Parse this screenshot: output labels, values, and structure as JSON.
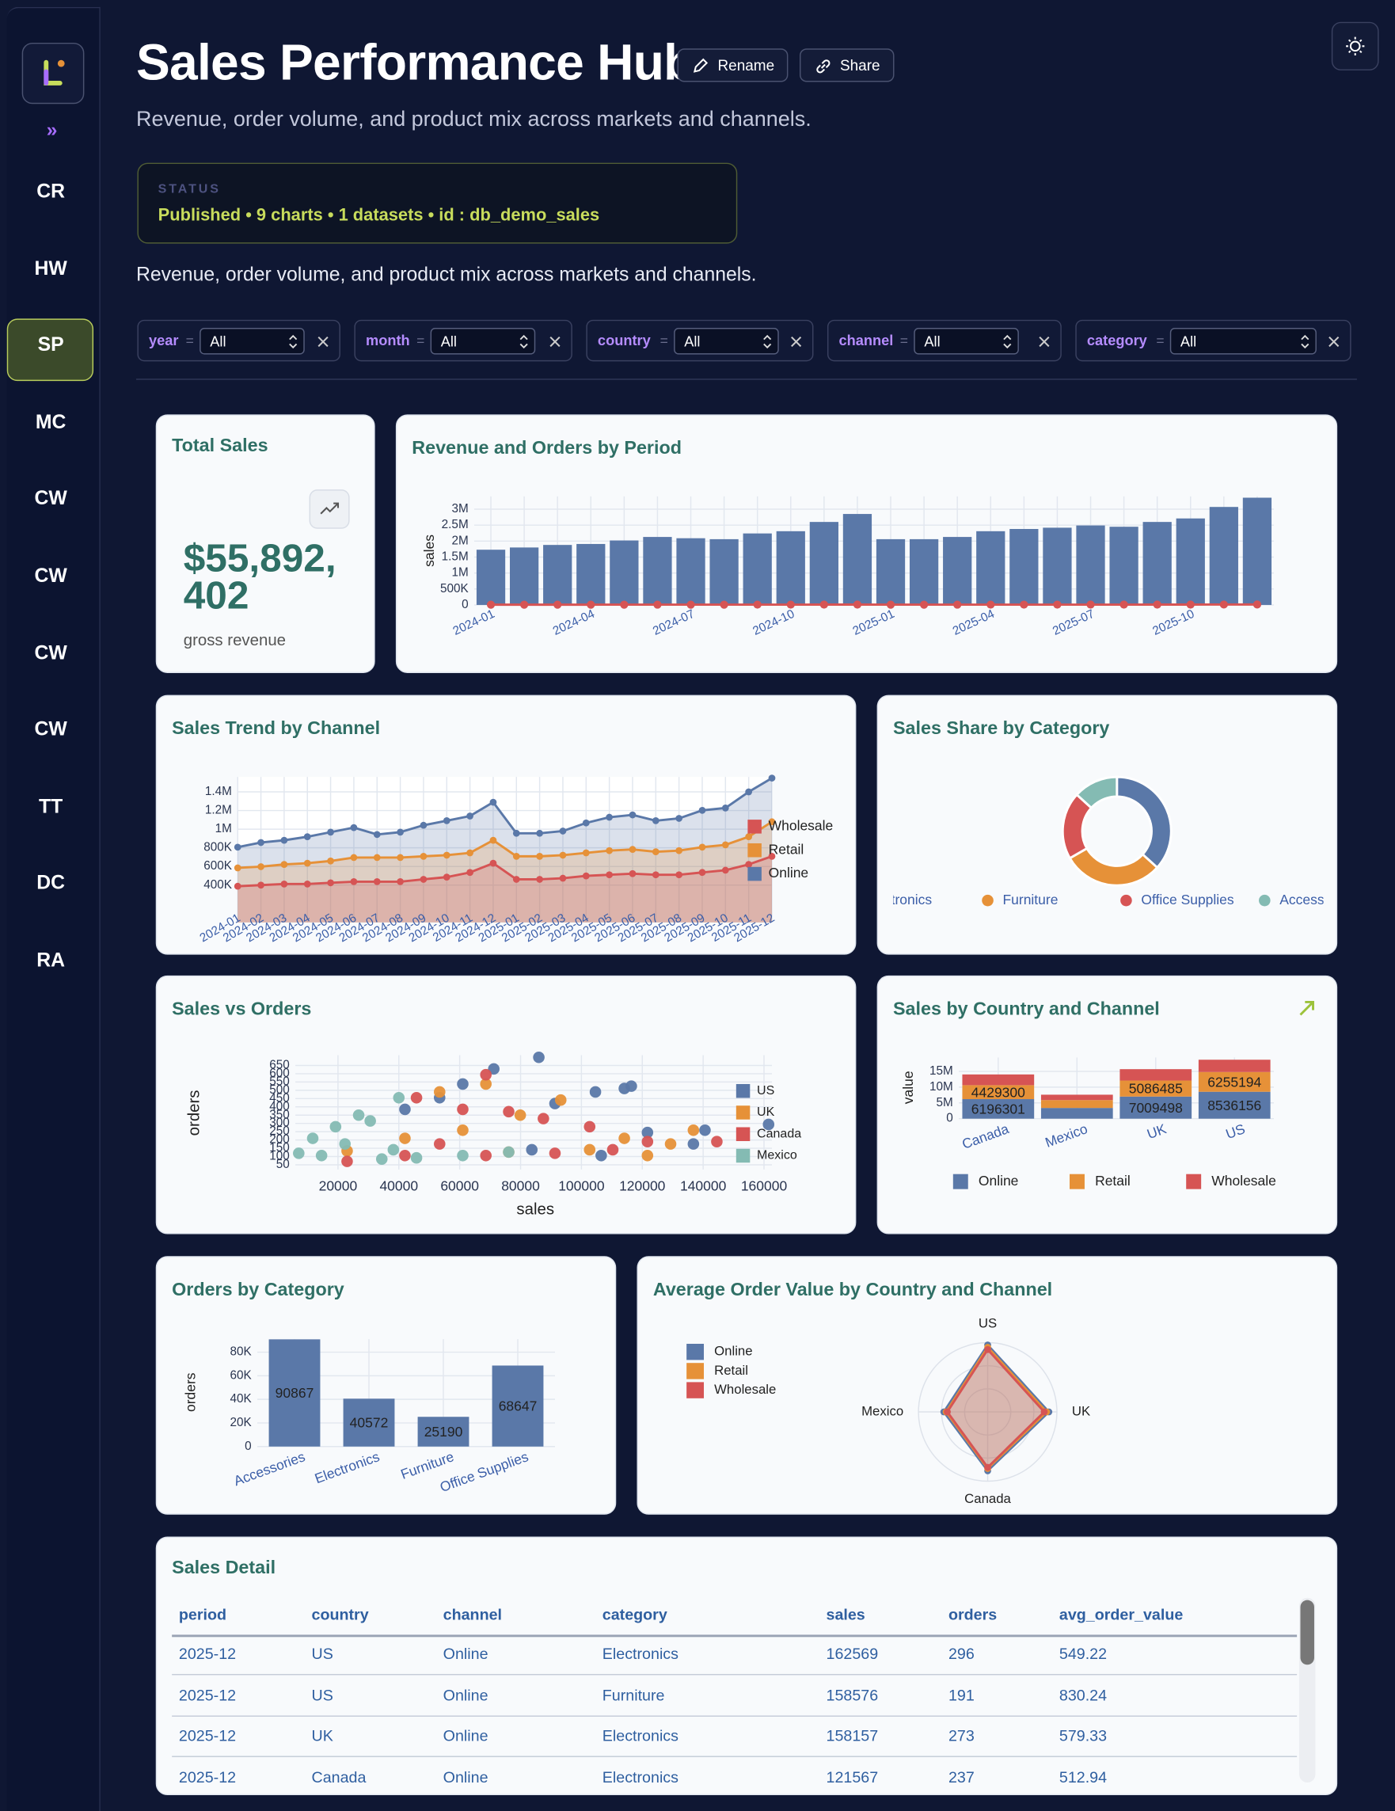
{
  "sidebar": {
    "toggle": "»",
    "items": [
      {
        "label": "CR"
      },
      {
        "label": "HW"
      },
      {
        "label": "SP",
        "active": true
      },
      {
        "label": "MC"
      },
      {
        "label": "CW"
      },
      {
        "label": "CW"
      },
      {
        "label": "CW"
      },
      {
        "label": "CW"
      },
      {
        "label": "TT"
      },
      {
        "label": "DC"
      },
      {
        "label": "RA"
      }
    ]
  },
  "header": {
    "title": "Sales Performance Hub",
    "buttons": [
      "Rename",
      "Share"
    ],
    "subtitle": "Revenue, order volume, and product mix across markets and channels.",
    "status_label": "STATUS",
    "status": "Published • 9 charts • 1 datasets • id : db_demo_sales",
    "description": "Revenue, order volume, and product mix across markets and channels."
  },
  "filters": [
    {
      "field": "year",
      "operator": "=",
      "value": "All"
    },
    {
      "field": "month",
      "operator": "=",
      "value": "All"
    },
    {
      "field": "country",
      "operator": "=",
      "value": "All"
    },
    {
      "field": "channel",
      "operator": "=",
      "value": "All"
    },
    {
      "field": "category",
      "operator": "=",
      "value": "All"
    }
  ],
  "kpi": {
    "title": "Total Sales",
    "value": "$55,892,402",
    "caption": "gross revenue"
  },
  "chart_data": [
    {
      "type": "combo",
      "title": "Revenue and Orders by Period",
      "ylabel": "sales",
      "categories": [
        "2024-01",
        null,
        null,
        "2024-04",
        null,
        null,
        "2024-07",
        null,
        null,
        "2024-10",
        null,
        null,
        "2025-01",
        null,
        null,
        "2025-04",
        null,
        null,
        "2025-07",
        null,
        null,
        "2025-10",
        null,
        null
      ],
      "series": [
        {
          "mark": "bar",
          "color": "#5a78a8",
          "values": [
            1730000,
            1800000,
            1880000,
            1910000,
            2020000,
            2130000,
            2090000,
            2060000,
            2240000,
            2310000,
            2600000,
            2850000,
            2060000,
            2060000,
            2130000,
            2310000,
            2380000,
            2420000,
            2490000,
            2450000,
            2600000,
            2710000,
            3070000,
            3360000
          ]
        },
        {
          "mark": "line",
          "color": "#d65454",
          "values": [
            7600,
            7900,
            8100,
            8200,
            8500,
            8900,
            8800,
            8700,
            9300,
            9500,
            10600,
            11400,
            8600,
            8600,
            8900,
            9500,
            9800,
            9900,
            10100,
            10000,
            10600,
            11000,
            12400,
            13700
          ]
        }
      ],
      "ylim": [
        0,
        3400000
      ],
      "yticks": [
        0,
        {
          "value": 500000,
          "label": "500K"
        },
        {
          "value": 1000000,
          "label": "1M"
        },
        {
          "value": 1500000,
          "label": "1.5M"
        },
        {
          "value": 2000000,
          "label": "2M"
        },
        {
          "value": 2500000,
          "label": "2.5M"
        },
        {
          "value": 3000000,
          "label": "3M"
        }
      ],
      "grid": true
    },
    {
      "type": "area",
      "title": "Sales Trend by Channel",
      "categories": [
        "2024-01",
        "2024-02",
        "2024-03",
        "2024-04",
        "2024-05",
        "2024-06",
        "2024-07",
        "2024-08",
        "2024-09",
        "2024-10",
        "2024-11",
        "2024-12",
        "2025-01",
        "2025-02",
        "2025-03",
        "2025-04",
        "2025-05",
        "2025-06",
        "2025-07",
        "2025-08",
        "2025-09",
        "2025-10",
        "2025-11",
        "2025-12"
      ],
      "series": [
        {
          "name": "Online",
          "color": "#5a78a8",
          "values": [
            807000,
            857000,
            881000,
            919000,
            968000,
            1017000,
            943000,
            968000,
            1042000,
            1091000,
            1141000,
            1289000,
            956000,
            956000,
            980000,
            1067000,
            1128000,
            1153000,
            1091000,
            1116000,
            1202000,
            1227000,
            1400000,
            1548000
          ]
        },
        {
          "name": "Retail",
          "color": "#e69138",
          "values": [
            585000,
            598000,
            622000,
            635000,
            659000,
            696000,
            696000,
            696000,
            709000,
            721000,
            746000,
            881000,
            709000,
            709000,
            721000,
            746000,
            770000,
            783000,
            758000,
            770000,
            807000,
            832000,
            919000,
            1079000
          ]
        },
        {
          "name": "Wholesale",
          "color": "#d65454",
          "values": [
            388000,
            400000,
            412000,
            412000,
            425000,
            437000,
            437000,
            437000,
            462000,
            486000,
            536000,
            635000,
            462000,
            462000,
            474000,
            499000,
            511000,
            523000,
            511000,
            511000,
            536000,
            560000,
            622000,
            709000
          ]
        }
      ],
      "ylim": [
        0,
        1560000
      ],
      "yticks": [
        {
          "value": 400000,
          "label": "400K"
        },
        {
          "value": 600000,
          "label": "600K"
        },
        {
          "value": 800000,
          "label": "800K"
        },
        {
          "value": 1000000,
          "label": "1M"
        },
        {
          "value": 1200000,
          "label": "1.2M"
        },
        {
          "value": 1400000,
          "label": "1.4M"
        }
      ],
      "grid": true,
      "legend": "right"
    },
    {
      "type": "donut",
      "title": "Sales Share by Category",
      "categories": [
        "Electronics",
        "Furniture",
        "Office Supplies",
        "Accessories"
      ],
      "values": [
        20500000,
        16800000,
        11200000,
        7400000
      ],
      "colors": [
        "#5a78a8",
        "#e69138",
        "#d65454",
        "#84bbb3"
      ],
      "legend": "bottom"
    },
    {
      "type": "scatter",
      "title": "Sales vs Orders",
      "xlabel": "sales",
      "ylabel": "orders",
      "series": [
        {
          "name": "US",
          "color": "#5a78a8",
          "x": [
            42000,
            53400,
            61000,
            71200,
            86000,
            91300,
            104600,
            114100,
            116400,
            121700,
            136800,
            140600,
            161500,
            83700,
            106500
          ],
          "y": [
            385,
            455,
            538,
            629,
            699,
            420,
            490,
            511,
            525,
            245,
            176,
            259,
            294,
            141,
            106
          ]
        },
        {
          "name": "UK",
          "color": "#e69138",
          "x": [
            53400,
            68600,
            93200,
            79900,
            61000,
            114100,
            129300,
            102700,
            136800,
            42000,
            23000,
            76100,
            121700
          ],
          "y": [
            490,
            538,
            441,
            350,
            259,
            210,
            176,
            141,
            259,
            210,
            134,
            127,
            106
          ]
        },
        {
          "name": "Canada",
          "color": "#d65454",
          "x": [
            68600,
            45800,
            61000,
            76100,
            87500,
            102700,
            121700,
            144500,
            42000,
            68600,
            91300,
            110300,
            23000,
            53400
          ],
          "y": [
            594,
            455,
            385,
            371,
            329,
            280,
            190,
            190,
            106,
            106,
            120,
            141,
            71,
            176
          ]
        },
        {
          "name": "Mexico",
          "color": "#84bbb3",
          "x": [
            11700,
            19200,
            26800,
            30600,
            40000,
            22300,
            7100,
            14600,
            34400,
            45800,
            61000,
            76100,
            38200
          ],
          "y": [
            210,
            280,
            350,
            315,
            455,
            176,
            120,
            106,
            85,
            92,
            106,
            127,
            141
          ]
        }
      ],
      "xlim": [
        6000,
        162600
      ],
      "ylim": [
        22,
        712
      ],
      "xticks": [
        20000,
        40000,
        60000,
        80000,
        100000,
        120000,
        140000,
        160000
      ],
      "yticks": [
        50,
        100,
        150,
        200,
        250,
        300,
        350,
        400,
        450,
        500,
        550,
        600,
        650
      ],
      "grid": true,
      "legend": "right"
    },
    {
      "type": "stacked_bar",
      "title": "Sales by Country and Channel",
      "ylabel": "value",
      "categories": [
        "Canada",
        "Mexico",
        "UK",
        "US"
      ],
      "series": [
        {
          "name": "Online",
          "color": "#5a78a8",
          "values": [
            6196301,
            3400000,
            7009498,
            8536156
          ]
        },
        {
          "name": "Retail",
          "color": "#e69138",
          "values": [
            4429300,
            2500000,
            5086485,
            6255194
          ]
        },
        {
          "name": "Wholesale",
          "color": "#d65454",
          "values": [
            3400000,
            1700000,
            3600000,
            3900000
          ]
        }
      ],
      "ylim": [
        0,
        19400000
      ],
      "yticks": [
        0,
        {
          "value": 5000000,
          "label": "5M"
        },
        {
          "value": 10000000,
          "label": "10M"
        },
        {
          "value": 15000000,
          "label": "15M"
        }
      ],
      "grid": true,
      "legend": "bottom"
    },
    {
      "type": "bar",
      "title": "Orders by Category",
      "ylabel": "orders",
      "categories": [
        "Accessories",
        "Electronics",
        "Furniture",
        "Office Supplies"
      ],
      "values": [
        90867,
        40572,
        25190,
        68647
      ],
      "color": "#5a78a8",
      "ylim": [
        0,
        91000
      ],
      "yticks": [
        0,
        {
          "value": 20000,
          "label": "20K"
        },
        {
          "value": 40000,
          "label": "40K"
        },
        {
          "value": 60000,
          "label": "60K"
        },
        {
          "value": 80000,
          "label": "80K"
        }
      ],
      "grid": true
    },
    {
      "type": "radar",
      "title": "Average Order Value by Country and Channel",
      "categories": [
        "US",
        "UK",
        "Canada",
        "Mexico"
      ],
      "series": [
        {
          "name": "Online",
          "color": "#5a78a8",
          "values": [
            290,
            265,
            255,
            190
          ]
        },
        {
          "name": "Retail",
          "color": "#e69138",
          "values": [
            280,
            255,
            245,
            180
          ]
        },
        {
          "name": "Wholesale",
          "color": "#d65454",
          "values": [
            270,
            245,
            240,
            175
          ]
        }
      ],
      "rlim": [
        0,
        300
      ],
      "rticks": [
        100,
        200,
        300
      ],
      "legend": "left"
    }
  ],
  "table": {
    "title": "Sales Detail",
    "columns": [
      "period",
      "country",
      "channel",
      "category",
      "sales",
      "orders",
      "avg_order_value"
    ],
    "rows": [
      [
        "2025-12",
        "US",
        "Online",
        "Electronics",
        162569,
        296,
        549.22
      ],
      [
        "2025-12",
        "US",
        "Online",
        "Furniture",
        158576,
        191,
        830.24
      ],
      [
        "2025-12",
        "UK",
        "Online",
        "Electronics",
        158157,
        273,
        579.33
      ],
      [
        "2025-12",
        "Canada",
        "Online",
        "Electronics",
        121567,
        237,
        512.94
      ]
    ]
  }
}
